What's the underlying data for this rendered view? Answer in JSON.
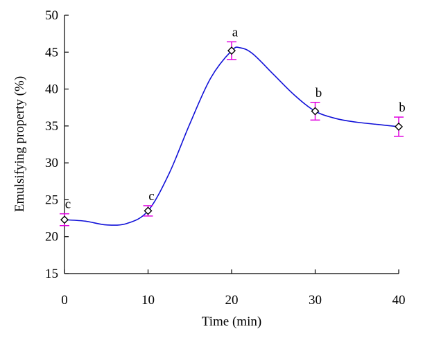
{
  "chart_data": {
    "type": "line",
    "xlabel": "Time (min)",
    "ylabel": "Emulsifying property (%)",
    "xlim": [
      0,
      40
    ],
    "ylim": [
      15,
      50
    ],
    "x_ticks": [
      "0",
      "10",
      "20",
      "30",
      "40"
    ],
    "y_ticks": [
      "15",
      "20",
      "25",
      "30",
      "35",
      "40",
      "45",
      "50"
    ],
    "grid": false,
    "series": [
      {
        "x": [
          0,
          10,
          20,
          30,
          40
        ],
        "y": [
          22.3,
          23.5,
          45.2,
          37.0,
          34.9
        ],
        "error": [
          0.8,
          0.7,
          1.2,
          1.2,
          1.3
        ],
        "significance": [
          "c",
          "c",
          "a",
          "b",
          "b"
        ],
        "marker": "diamond",
        "line_color": "#1010d8",
        "error_color": "#e000e0"
      }
    ],
    "smoothed_curve": {
      "x": [
        0,
        2.5,
        5,
        7.5,
        10,
        12.5,
        15,
        17.5,
        20,
        21,
        22.5,
        25,
        27.5,
        30,
        32.5,
        35,
        37.5,
        40
      ],
      "y": [
        22.3,
        22.1,
        21.6,
        21.8,
        23.5,
        28.5,
        35.3,
        41.5,
        45.2,
        45.6,
        44.8,
        42.0,
        39.2,
        37.0,
        36.0,
        35.5,
        35.2,
        34.9
      ]
    }
  }
}
